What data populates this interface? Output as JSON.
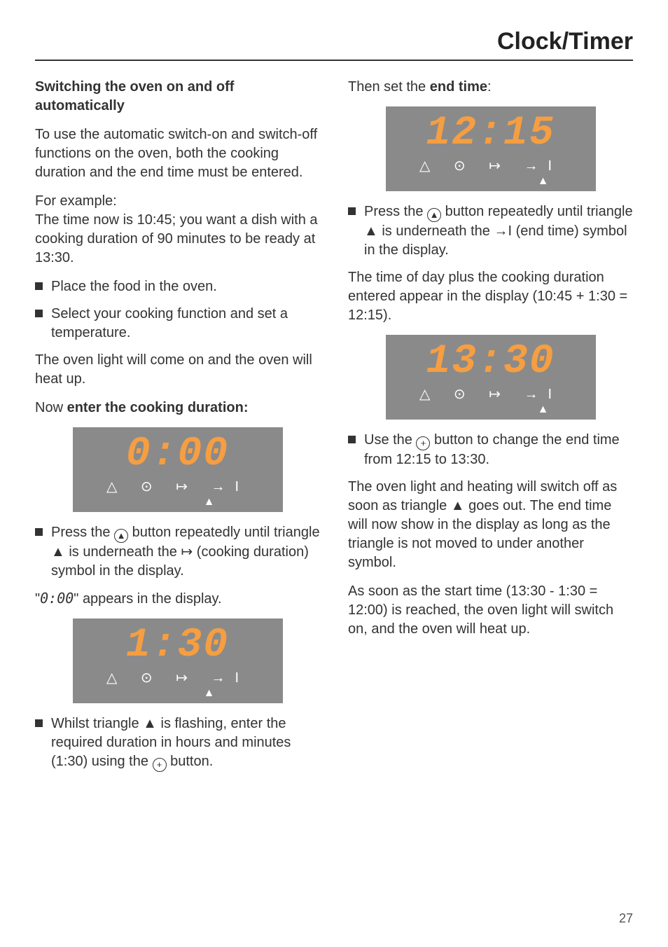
{
  "header": {
    "title": "Clock/Timer"
  },
  "left": {
    "subhead": "Switching the oven on and off automatically",
    "p1": "To use the automatic switch-on and switch-off functions on the oven, both the cooking duration and the end time must be entered.",
    "p2a": "For example:",
    "p2b": "The time now is 10:45; you want a dish with a cooking duration of 90 minutes to be ready at 13:30.",
    "b1": "Place the food in the oven.",
    "b2": "Select your cooking function and set a temperature.",
    "p3": "The oven light will come on and the oven will heat up.",
    "p4_pre": "Now ",
    "p4_bold": "enter the cooking duration:",
    "panel1": {
      "time": "0:00",
      "icons": "△ ⊙ ↦ →I",
      "arrow_align": "dur"
    },
    "b3_1": "Press the ",
    "b3_2": " button repeatedly until triangle ▲ is underneath the ↦ (cooking duration) symbol in the display.",
    "p5_1": "\"",
    "p5_seg": "0:00",
    "p5_2": "\" appears in the display.",
    "panel2": {
      "time": "1:30",
      "icons": "△ ⊙ ↦ →I",
      "arrow_align": "dur"
    },
    "b4_1": "Whilst triangle ▲ is flashing, enter the required duration in hours and minutes (1:30) using the ",
    "b4_2": " button."
  },
  "right": {
    "p1_pre": "Then set the ",
    "p1_bold": "end time",
    "p1_post": ":",
    "panel3": {
      "time": "12:15",
      "icons": "△ ⊙ ↦ →I",
      "arrow_align": "end"
    },
    "b1_1": "Press the ",
    "b1_2": " button repeatedly until triangle ▲ is underneath the →I (end time) symbol in the display.",
    "p2": "The time of day plus the cooking duration entered appear in the display (10:45 + 1:30 = 12:15).",
    "panel4": {
      "time": "13:30",
      "icons": "△ ⊙ ↦ →I",
      "arrow_align": "end"
    },
    "b2_1": "Use the ",
    "b2_2": " button to change the end time from 12:15 to 13:30.",
    "p3": "The oven light and heating will switch off as soon as triangle ▲ goes out. The end time will now show in the display as long as the triangle is not moved to under another symbol.",
    "p4": "As soon as the start time (13:30 - 1:30 = 12:00) is reached, the oven light will switch on, and the oven will heat up."
  },
  "icons": {
    "up_circle": "▲",
    "plus_circle": "+"
  },
  "page_number": "27",
  "colors": {
    "panel_bg": "#8a8a8a",
    "seg_color": "#f59e42",
    "text": "#333333",
    "rule": "#333333"
  }
}
